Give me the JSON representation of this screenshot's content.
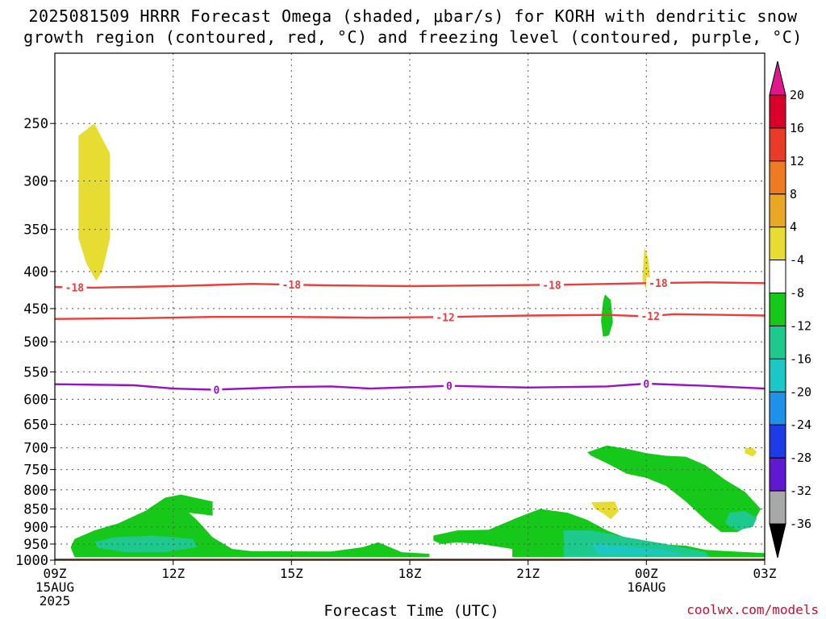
{
  "title": {
    "line1": "2025081509 HRRR Forecast Omega (shaded, μbar/s) for KORH with dendritic snow",
    "line2": "growth region (contoured, red, °C) and freezing level (contoured, purple, °C)"
  },
  "credit": "coolwx.com/models",
  "chart_data": {
    "type": "heatmap",
    "xlabel": "Forecast Time (UTC)",
    "x_ticks": [
      {
        "hour": 0,
        "label": "09Z",
        "sub1": "15AUG",
        "sub2": "2025"
      },
      {
        "hour": 3,
        "label": "12Z",
        "sub1": "",
        "sub2": ""
      },
      {
        "hour": 6,
        "label": "15Z",
        "sub1": "",
        "sub2": ""
      },
      {
        "hour": 9,
        "label": "18Z",
        "sub1": "",
        "sub2": ""
      },
      {
        "hour": 12,
        "label": "21Z",
        "sub1": "",
        "sub2": ""
      },
      {
        "hour": 15,
        "label": "00Z",
        "sub1": "16AUG",
        "sub2": ""
      },
      {
        "hour": 18,
        "label": "03Z",
        "sub1": "",
        "sub2": ""
      }
    ],
    "xlim": [
      0,
      18
    ],
    "ylabel": "",
    "y_ticks": [
      250,
      300,
      350,
      400,
      450,
      500,
      550,
      600,
      650,
      700,
      750,
      800,
      850,
      900,
      950,
      1000
    ],
    "ylim": [
      1000,
      200
    ],
    "grid": true,
    "colorbar": {
      "labels": [
        20,
        16,
        12,
        8,
        4,
        -4,
        -8,
        -12,
        -16,
        -20,
        -24,
        -28,
        -32,
        -36
      ],
      "colors": [
        "#d9002a",
        "#e83c28",
        "#ee7a22",
        "#e8a823",
        "#e6dc32",
        "#ffffff",
        "#16c81a",
        "#1ec98e",
        "#1ec7c7",
        "#1e92e8",
        "#1e3ce6",
        "#6018d0",
        "#a010c8",
        "#a8a8a8"
      ],
      "top_color": "#e0178a",
      "bottom_color": "#000000"
    },
    "contours": [
      {
        "value": "-18",
        "color": "#ee3b3b",
        "label_hours": [
          0.5,
          6.0,
          12.6,
          15.3
        ],
        "points": [
          [
            0,
            420
          ],
          [
            1,
            421
          ],
          [
            3,
            419
          ],
          [
            5,
            416
          ],
          [
            7,
            418
          ],
          [
            9,
            419
          ],
          [
            11,
            418
          ],
          [
            13,
            417
          ],
          [
            15,
            415
          ],
          [
            16.5,
            414
          ],
          [
            18,
            415
          ]
        ]
      },
      {
        "value": "-12",
        "color": "#ee3b3b",
        "label_hours": [
          9.9,
          15.1
        ],
        "points": [
          [
            0,
            465
          ],
          [
            2,
            464
          ],
          [
            4,
            462
          ],
          [
            6,
            462
          ],
          [
            8,
            463
          ],
          [
            10,
            462
          ],
          [
            12,
            460
          ],
          [
            14,
            459
          ],
          [
            15,
            461
          ],
          [
            15.7,
            458
          ],
          [
            17,
            459
          ],
          [
            18,
            460
          ]
        ]
      },
      {
        "value": "0",
        "color": "#9a10c8",
        "label_hours": [
          4.1,
          10.0,
          15.0
        ],
        "points": [
          [
            0,
            572
          ],
          [
            2,
            574
          ],
          [
            3,
            580
          ],
          [
            4,
            582
          ],
          [
            6,
            577
          ],
          [
            7,
            576
          ],
          [
            8,
            580
          ],
          [
            10,
            575
          ],
          [
            12,
            578
          ],
          [
            14,
            576
          ],
          [
            15,
            571
          ],
          [
            16.5,
            575
          ],
          [
            18,
            580
          ]
        ]
      }
    ],
    "omega_areas": [
      {
        "label": "4",
        "color": "#e6dc32",
        "points": [
          [
            0.6,
            260
          ],
          [
            1.0,
            250
          ],
          [
            1.4,
            275
          ],
          [
            1.4,
            360
          ],
          [
            1.2,
            400
          ],
          [
            1.05,
            412
          ],
          [
            0.8,
            390
          ],
          [
            0.6,
            360
          ],
          [
            0.6,
            300
          ]
        ]
      },
      {
        "label": "4",
        "color": "#e6dc32",
        "points": [
          [
            14.95,
            370
          ],
          [
            15.05,
            385
          ],
          [
            15.1,
            410
          ],
          [
            15.0,
            424
          ],
          [
            14.9,
            410
          ]
        ]
      },
      {
        "label": "4",
        "color": "#e6dc32",
        "points": [
          [
            13.6,
            832
          ],
          [
            14.2,
            830
          ],
          [
            14.3,
            855
          ],
          [
            14.1,
            878
          ],
          [
            13.9,
            862
          ],
          [
            13.7,
            850
          ]
        ]
      },
      {
        "label": "4",
        "color": "#e6dc32",
        "points": [
          [
            17.5,
            700
          ],
          [
            17.7,
            700
          ],
          [
            17.8,
            710
          ],
          [
            17.7,
            720
          ],
          [
            17.5,
            712
          ]
        ]
      },
      {
        "label": "-4",
        "color": "#16c81a",
        "points": [
          [
            13.95,
            430
          ],
          [
            14.1,
            438
          ],
          [
            14.15,
            470
          ],
          [
            14.05,
            490
          ],
          [
            13.9,
            492
          ],
          [
            13.85,
            468
          ],
          [
            13.9,
            440
          ]
        ]
      },
      {
        "label": "-4",
        "color": "#16c81a",
        "points": [
          [
            13.5,
            710
          ],
          [
            14.0,
            695
          ],
          [
            14.5,
            702
          ],
          [
            15.0,
            712
          ],
          [
            15.5,
            718
          ],
          [
            16.0,
            720
          ],
          [
            16.5,
            740
          ],
          [
            17.0,
            775
          ],
          [
            17.5,
            805
          ],
          [
            17.9,
            850
          ],
          [
            17.7,
            890
          ],
          [
            17.3,
            915
          ],
          [
            16.9,
            915
          ],
          [
            16.5,
            880
          ],
          [
            16.0,
            830
          ],
          [
            15.5,
            790
          ],
          [
            15.0,
            770
          ],
          [
            14.5,
            760
          ],
          [
            14.0,
            735
          ],
          [
            13.6,
            718
          ]
        ]
      },
      {
        "label": "-4",
        "color": "#16c81a",
        "points": [
          [
            0.5,
            935
          ],
          [
            1.0,
            910
          ],
          [
            1.6,
            890
          ],
          [
            2.3,
            855
          ],
          [
            2.8,
            820
          ],
          [
            3.2,
            812
          ],
          [
            4.0,
            830
          ],
          [
            4.0,
            868
          ],
          [
            3.4,
            860
          ],
          [
            3.6,
            880
          ],
          [
            4.0,
            930
          ],
          [
            4.5,
            965
          ],
          [
            5.0,
            972
          ],
          [
            7.0,
            973
          ],
          [
            7.8,
            960
          ],
          [
            8.2,
            945
          ],
          [
            8.5,
            960
          ],
          [
            8.8,
            975
          ],
          [
            9.5,
            980
          ],
          [
            9.5,
            990
          ],
          [
            0.5,
            990
          ],
          [
            0.4,
            960
          ]
        ]
      },
      {
        "label": "-4",
        "color": "#16c81a",
        "points": [
          [
            9.6,
            925
          ],
          [
            10.2,
            910
          ],
          [
            11.0,
            908
          ],
          [
            11.7,
            875
          ],
          [
            12.3,
            850
          ],
          [
            13.0,
            860
          ],
          [
            13.5,
            880
          ],
          [
            14.0,
            910
          ],
          [
            14.5,
            932
          ],
          [
            15.0,
            948
          ],
          [
            16.0,
            955
          ],
          [
            16.5,
            968
          ],
          [
            18.0,
            978
          ],
          [
            18.0,
            990
          ],
          [
            11.6,
            990
          ],
          [
            11.6,
            965
          ],
          [
            10.8,
            950
          ],
          [
            10.2,
            945
          ],
          [
            9.8,
            950
          ],
          [
            9.6,
            940
          ]
        ]
      },
      {
        "label": "-8",
        "color": "#1ec98e",
        "points": [
          [
            1.0,
            945
          ],
          [
            1.5,
            930
          ],
          [
            2.5,
            925
          ],
          [
            3.5,
            935
          ],
          [
            3.6,
            960
          ],
          [
            2.8,
            975
          ],
          [
            1.8,
            975
          ],
          [
            1.1,
            962
          ]
        ]
      },
      {
        "label": "-8",
        "color": "#1ec98e",
        "points": [
          [
            12.9,
            910
          ],
          [
            13.6,
            910
          ],
          [
            14.5,
            930
          ],
          [
            15.5,
            950
          ],
          [
            16.5,
            975
          ],
          [
            16.6,
            990
          ],
          [
            12.9,
            990
          ]
        ]
      },
      {
        "label": "-8",
        "color": "#1ec98e",
        "points": [
          [
            17.1,
            860
          ],
          [
            17.5,
            855
          ],
          [
            17.8,
            875
          ],
          [
            17.7,
            900
          ],
          [
            17.3,
            910
          ],
          [
            17.0,
            890
          ]
        ]
      },
      {
        "label": "-12",
        "color": "#1ec7c7",
        "points": [
          [
            13.6,
            950
          ],
          [
            14.5,
            958
          ],
          [
            15.5,
            970
          ],
          [
            16.0,
            982
          ],
          [
            13.8,
            982
          ]
        ]
      }
    ],
    "ground": {
      "color": "#a5522a",
      "top": 995
    }
  }
}
